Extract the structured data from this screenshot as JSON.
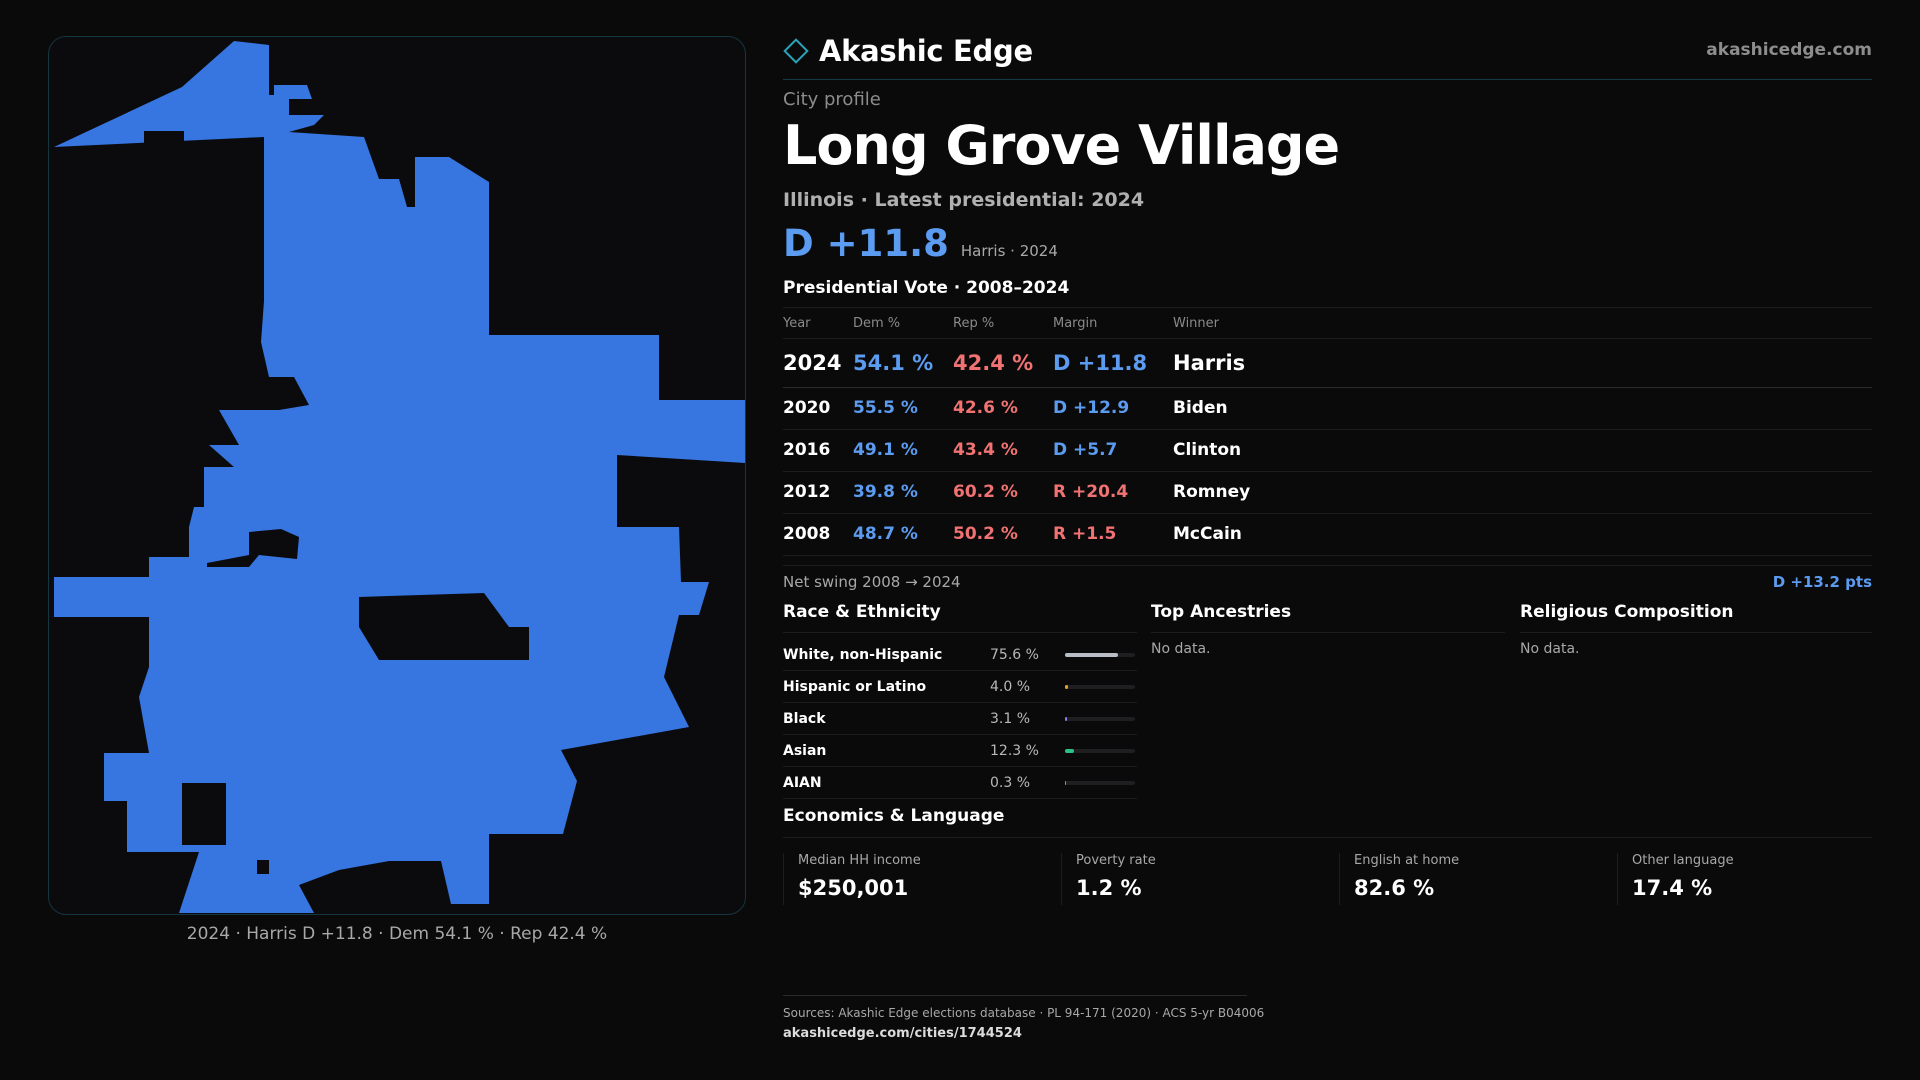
{
  "brand": {
    "name": "Akashic Edge",
    "url": "akashicedge.com"
  },
  "profile": {
    "eyebrow": "City profile",
    "city": "Long Grove Village",
    "subtitle": "Illinois · Latest presidential: 2024",
    "headline_margin": "D +11.8",
    "headline_sub": "Harris · 2024"
  },
  "map": {
    "caption": "2024 · Harris D +11.8 · Dem 54.1 % · Rep 42.4 %",
    "fill_color": "#3775e0"
  },
  "vote_table": {
    "title": "Presidential Vote · 2008–2024",
    "headers": {
      "year": "Year",
      "dem": "Dem %",
      "rep": "Rep %",
      "margin": "Margin",
      "winner": "Winner"
    },
    "rows": [
      {
        "year": "2024",
        "dem": "54.1 %",
        "rep": "42.4 %",
        "margin": "D +11.8",
        "party": "D",
        "winner": "Harris"
      },
      {
        "year": "2020",
        "dem": "55.5 %",
        "rep": "42.6 %",
        "margin": "D +12.9",
        "party": "D",
        "winner": "Biden"
      },
      {
        "year": "2016",
        "dem": "49.1 %",
        "rep": "43.4 %",
        "margin": "D +5.7",
        "party": "D",
        "winner": "Clinton"
      },
      {
        "year": "2012",
        "dem": "39.8 %",
        "rep": "60.2 %",
        "margin": "R +20.4",
        "party": "R",
        "winner": "Romney"
      },
      {
        "year": "2008",
        "dem": "48.7 %",
        "rep": "50.2 %",
        "margin": "R +1.5",
        "party": "R",
        "winner": "McCain"
      }
    ],
    "swing_label": "Net swing 2008 → 2024",
    "swing_value": "D +13.2 pts"
  },
  "race": {
    "title": "Race & Ethnicity",
    "rows": [
      {
        "label": "White, non-Hispanic",
        "value": "75.6 %",
        "pct": 75.6,
        "color": "#b9bec6"
      },
      {
        "label": "Hispanic or Latino",
        "value": "4.0 %",
        "pct": 4.0,
        "color": "#e0a030"
      },
      {
        "label": "Black",
        "value": "3.1 %",
        "pct": 3.1,
        "color": "#8b7cf0"
      },
      {
        "label": "Asian",
        "value": "12.3 %",
        "pct": 12.3,
        "color": "#2fc08a"
      },
      {
        "label": "AIAN",
        "value": "0.3 %",
        "pct": 0.3,
        "color": "#e07a3a"
      }
    ]
  },
  "ancestries": {
    "title": "Top Ancestries",
    "empty": "No data."
  },
  "religion": {
    "title": "Religious Composition",
    "empty": "No data."
  },
  "economics": {
    "title": "Economics & Language",
    "cards": [
      {
        "label": "Median HH income",
        "value": "$250,001"
      },
      {
        "label": "Poverty rate",
        "value": "1.2 %"
      },
      {
        "label": "English at home",
        "value": "82.6 %"
      },
      {
        "label": "Other language",
        "value": "17.4 %"
      }
    ]
  },
  "footer": {
    "sources": "Sources: Akashic Edge elections database · PL 94-171 (2020) · ACS 5-yr B04006",
    "url": "akashicedge.com/cities/1744524"
  }
}
